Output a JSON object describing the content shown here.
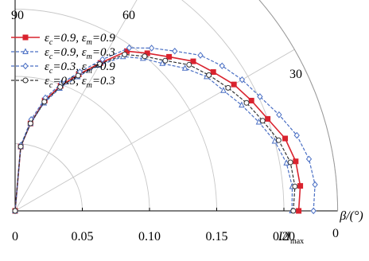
{
  "chart_data": {
    "type": "line",
    "coordinate_system": "polar",
    "title": "",
    "radial_axis": {
      "label_main": "I/I",
      "label_sub": "max",
      "range": [
        0,
        0.24
      ],
      "ticks": [
        0,
        0.05,
        0.1,
        0.15,
        0.2
      ],
      "tick_labels": [
        "0",
        "0.05",
        "0.10",
        "0.15",
        "0.20"
      ]
    },
    "angular_axis": {
      "label": "β/(°)",
      "range_deg": [
        0,
        90
      ],
      "ticks": [
        0,
        30,
        60,
        90
      ],
      "tick_labels": [
        "0",
        "30",
        "60",
        "90"
      ]
    },
    "legend_position": "top-left",
    "grid": true,
    "angles_deg": [
      0,
      5,
      10,
      15,
      20,
      25,
      30,
      35,
      40,
      45,
      50,
      55,
      60,
      65,
      70,
      75,
      80,
      85,
      90
    ],
    "series": [
      {
        "legend_main": "ε",
        "legend_sub1": "c",
        "legend_mid": "=0.9, ε",
        "legend_sub2": "m",
        "legend_val": "=0.9",
        "color": "#d9232e",
        "marker": "square",
        "values": [
          0.211,
          0.213,
          0.212,
          0.208,
          0.2,
          0.194,
          0.188,
          0.18,
          0.173,
          0.162,
          0.153,
          0.145,
          0.127,
          0.112,
          0.099,
          0.085,
          0.066,
          0.048,
          0.0
        ]
      },
      {
        "legend_main": "ε",
        "legend_sub1": "c",
        "legend_mid": "=0.9, ε",
        "legend_sub2": "m",
        "legend_val": "=0.3",
        "color": "#4a6fc4",
        "marker": "triangle",
        "values": [
          0.206,
          0.207,
          0.205,
          0.2,
          0.193,
          0.186,
          0.179,
          0.174,
          0.165,
          0.155,
          0.148,
          0.14,
          0.125,
          0.11,
          0.097,
          0.083,
          0.066,
          0.048,
          0.0
        ]
      },
      {
        "legend_main": "ε",
        "legend_sub1": "c",
        "legend_mid": "=0.3, ε",
        "legend_sub2": "m",
        "legend_val": "=0.9",
        "color": "#4a6fc4",
        "marker": "diamond",
        "values": [
          0.222,
          0.224,
          0.222,
          0.217,
          0.209,
          0.201,
          0.195,
          0.188,
          0.18,
          0.168,
          0.158,
          0.148,
          0.13,
          0.114,
          0.101,
          0.087,
          0.069,
          0.049,
          0.0
        ]
      },
      {
        "legend_main": "ε",
        "legend_sub1": "c",
        "legend_mid": "=0.3, ε",
        "legend_sub2": "m",
        "legend_val": "=0.3",
        "color": "#333333",
        "marker": "circle",
        "values": [
          0.207,
          0.209,
          0.208,
          0.203,
          0.196,
          0.19,
          0.183,
          0.176,
          0.169,
          0.158,
          0.15,
          0.142,
          0.126,
          0.111,
          0.098,
          0.084,
          0.066,
          0.048,
          0.0
        ]
      }
    ]
  }
}
